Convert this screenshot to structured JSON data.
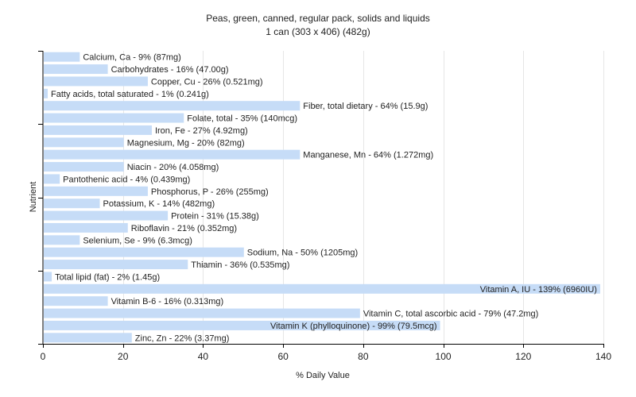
{
  "chart_data": {
    "type": "bar",
    "orientation": "horizontal",
    "title": "Peas, green, canned, regular pack, solids and liquids",
    "subtitle": "1 can (303 x 406) (482g)",
    "xlabel": "% Daily Value",
    "ylabel": "Nutrient",
    "xlim": [
      0,
      140
    ],
    "xticks": [
      0,
      20,
      40,
      60,
      80,
      100,
      120,
      140
    ],
    "grid": true,
    "bar_color": "#c6dcf7",
    "grid_color": "#e6e6e6",
    "axis_color": "#000000",
    "categories": [
      "Calcium, Ca",
      "Carbohydrates",
      "Copper, Cu",
      "Fatty acids, total saturated",
      "Fiber, total dietary",
      "Folate, total",
      "Iron, Fe",
      "Magnesium, Mg",
      "Manganese, Mn",
      "Niacin",
      "Pantothenic acid",
      "Phosphorus, P",
      "Potassium, K",
      "Protein",
      "Riboflavin",
      "Selenium, Se",
      "Sodium, Na",
      "Thiamin",
      "Total lipid (fat)",
      "Vitamin A, IU",
      "Vitamin B-6",
      "Vitamin C, total ascorbic acid",
      "Vitamin K (phylloquinone)",
      "Zinc, Zn"
    ],
    "values": [
      9,
      16,
      26,
      1,
      64,
      35,
      27,
      20,
      64,
      20,
      4,
      26,
      14,
      31,
      21,
      9,
      50,
      36,
      2,
      139,
      16,
      79,
      99,
      22
    ],
    "labels": [
      "Calcium, Ca - 9% (87mg)",
      "Carbohydrates - 16% (47.00g)",
      "Copper, Cu - 26% (0.521mg)",
      "Fatty acids, total saturated - 1% (0.241g)",
      "Fiber, total dietary - 64% (15.9g)",
      "Folate, total - 35% (140mcg)",
      "Iron, Fe - 27% (4.92mg)",
      "Magnesium, Mg - 20% (82mg)",
      "Manganese, Mn - 64% (1.272mg)",
      "Niacin - 20% (4.058mg)",
      "Pantothenic acid - 4% (0.439mg)",
      "Phosphorus, P - 26% (255mg)",
      "Potassium, K - 14% (482mg)",
      "Protein - 31% (15.38g)",
      "Riboflavin - 21% (0.352mg)",
      "Selenium, Se - 9% (6.3mcg)",
      "Sodium, Na - 50% (1205mg)",
      "Thiamin - 36% (0.535mg)",
      "Total lipid (fat) - 2% (1.45g)",
      "Vitamin A, IU - 139% (6960IU)",
      "Vitamin B-6 - 16% (0.313mg)",
      "Vitamin C, total ascorbic acid - 79% (47.2mg)",
      "Vitamin K (phylloquinone) - 99% (79.5mcg)",
      "Zinc, Zn - 22% (3.37mg)"
    ]
  }
}
